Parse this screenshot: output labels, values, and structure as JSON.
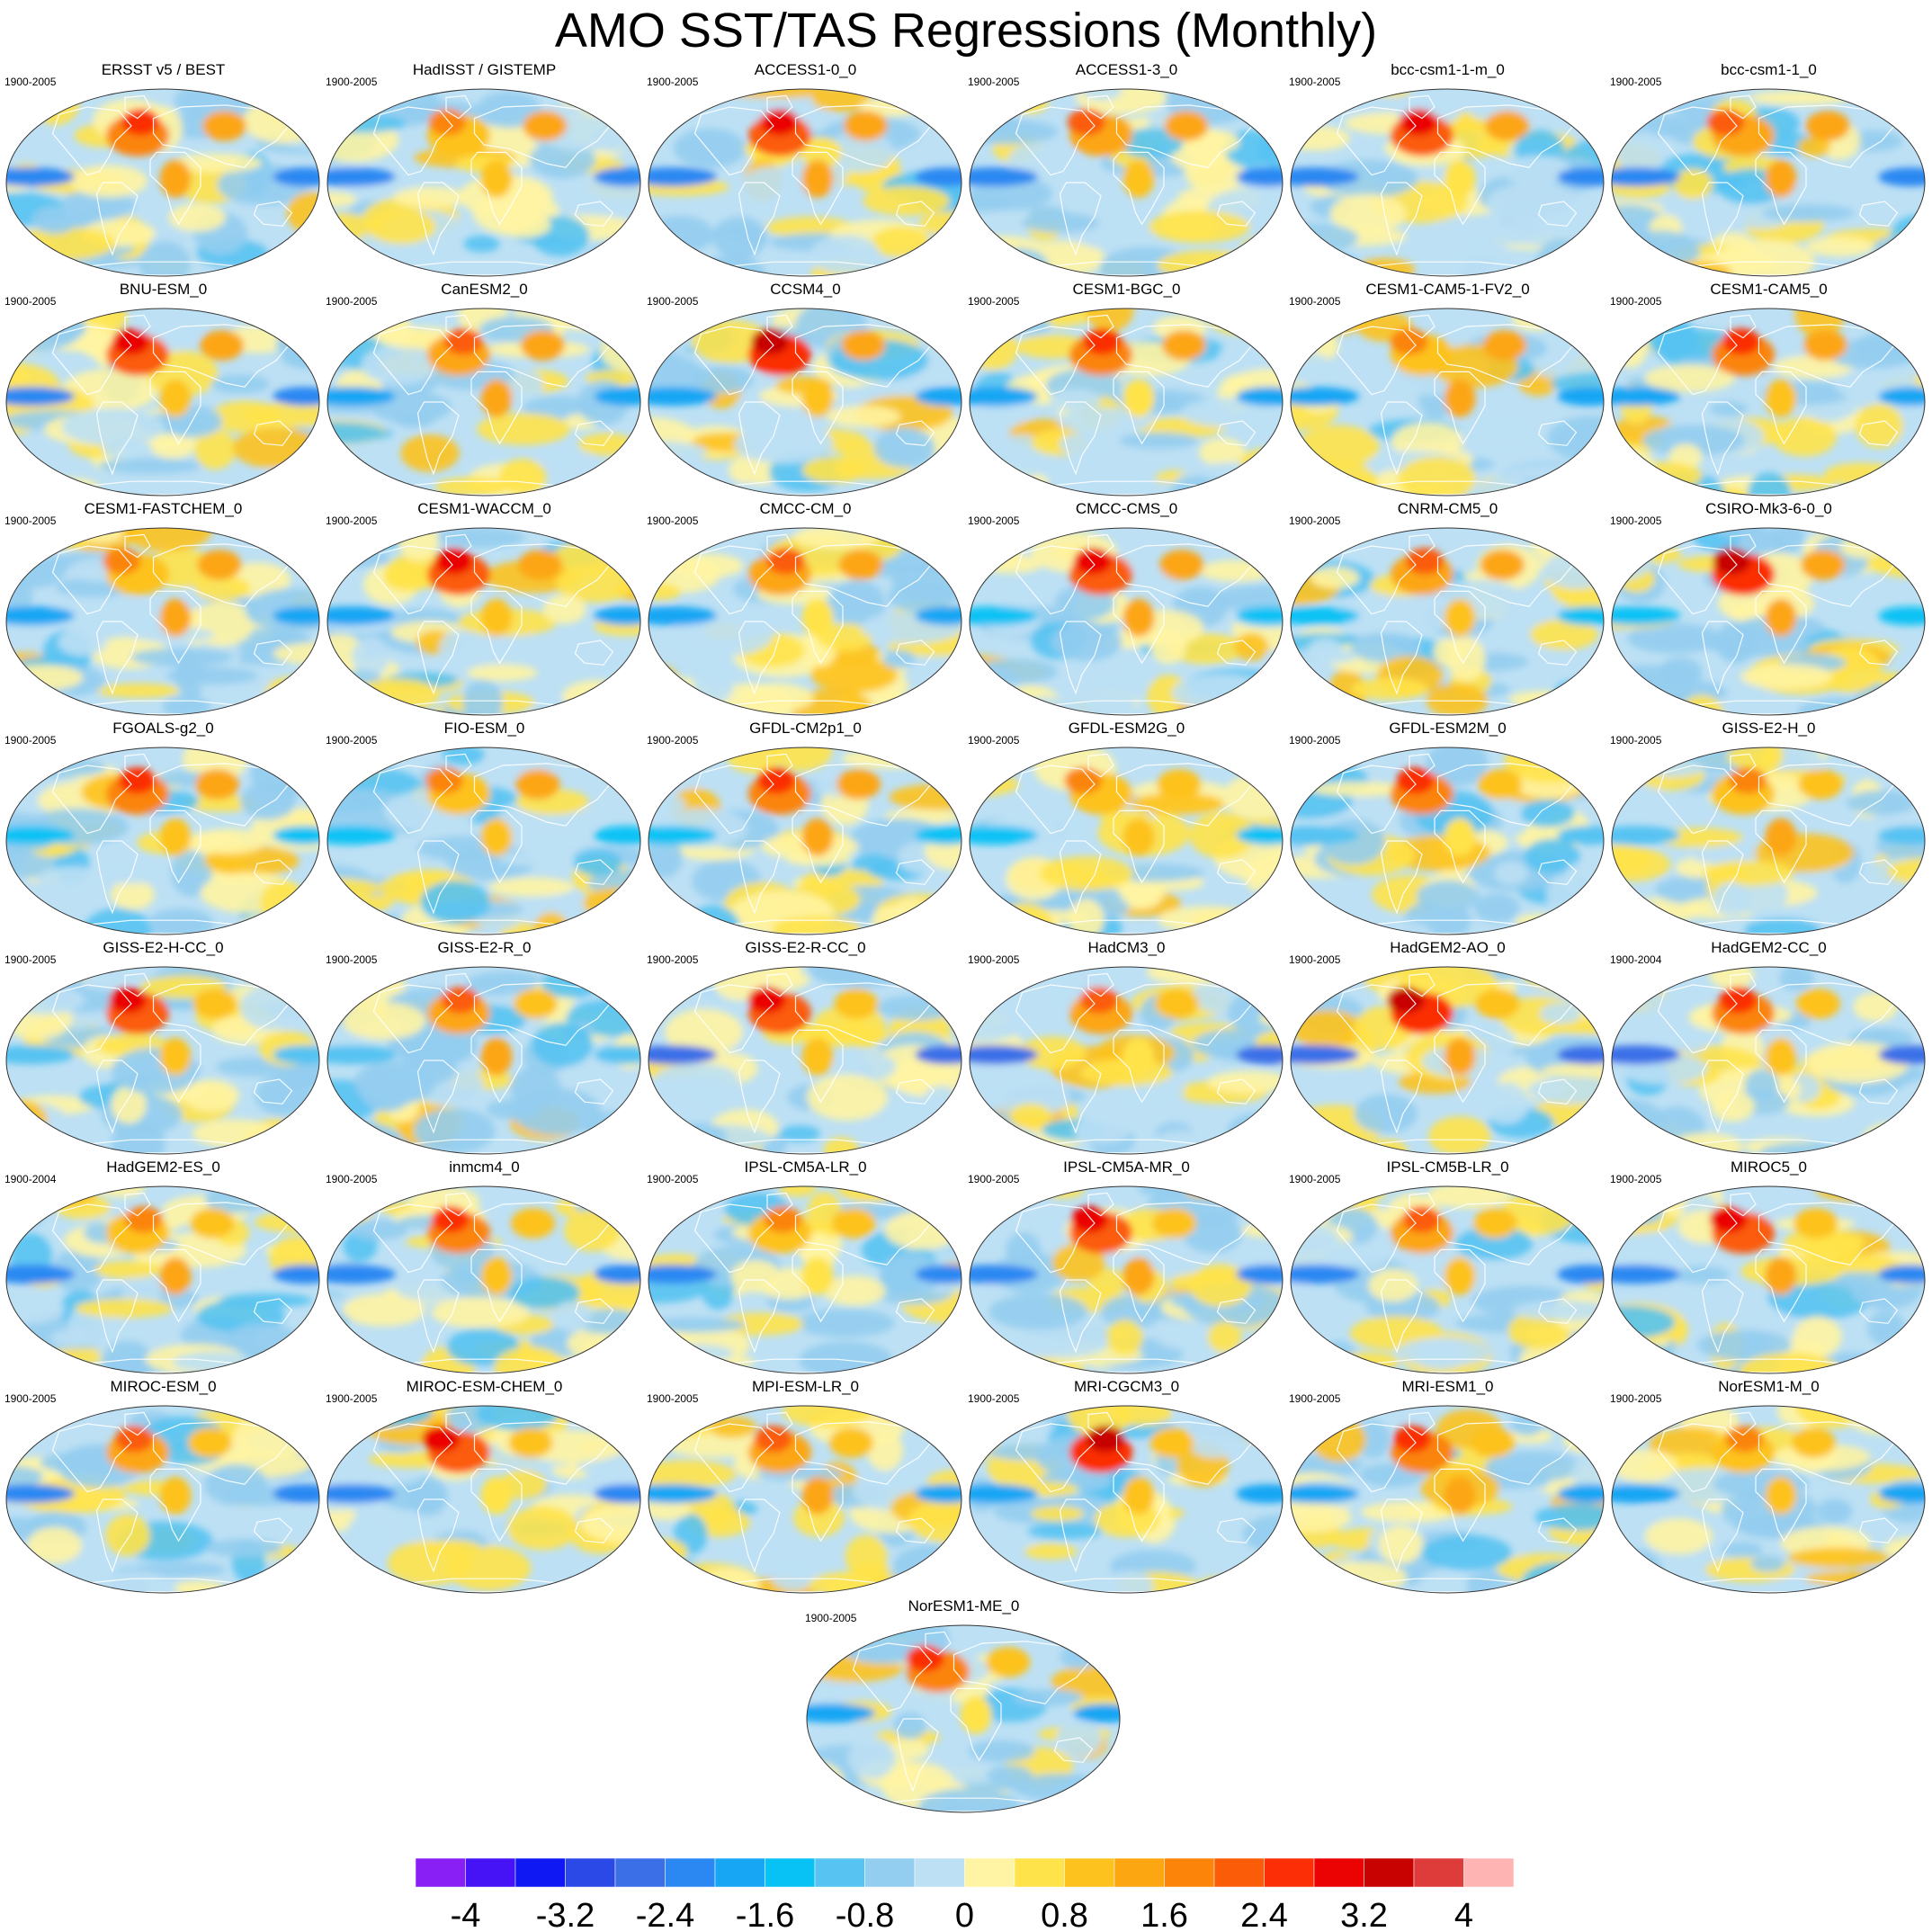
{
  "title": "AMO SST/TAS Regressions (Monthly)",
  "colors": {
    "scale": [
      "#8a1ff5",
      "#4513f5",
      "#0f18f2",
      "#2b49e6",
      "#3a6fe8",
      "#2b88f2",
      "#17a6f4",
      "#08c2f5",
      "#56c3f2",
      "#93cdef",
      "#bde0f4",
      "#fff4a3",
      "#ffe34a",
      "#fdc21d",
      "#fca612",
      "#fb8409",
      "#fb5c07",
      "#fb2e05",
      "#eb0202",
      "#c70201",
      "#de3b3b",
      "#ffb4b4"
    ]
  },
  "colorbar": {
    "labels": [
      "-4",
      "-3.2",
      "-2.4",
      "-1.6",
      "-0.8",
      "0",
      "0.8",
      "1.6",
      "2.4",
      "3.2",
      "4"
    ]
  },
  "panels": [
    {
      "name": "ERSST v5 / BEST",
      "period": "1900-2005"
    },
    {
      "name": "HadISST / GISTEMP",
      "period": "1900-2005"
    },
    {
      "name": "ACCESS1-0_0",
      "period": "1900-2005"
    },
    {
      "name": "ACCESS1-3_0",
      "period": "1900-2005"
    },
    {
      "name": "bcc-csm1-1-m_0",
      "period": "1900-2005"
    },
    {
      "name": "bcc-csm1-1_0",
      "period": "1900-2005"
    },
    {
      "name": "BNU-ESM_0",
      "period": "1900-2005"
    },
    {
      "name": "CanESM2_0",
      "period": "1900-2005"
    },
    {
      "name": "CCSM4_0",
      "period": "1900-2005"
    },
    {
      "name": "CESM1-BGC_0",
      "period": "1900-2005"
    },
    {
      "name": "CESM1-CAM5-1-FV2_0",
      "period": "1900-2005"
    },
    {
      "name": "CESM1-CAM5_0",
      "period": "1900-2005"
    },
    {
      "name": "CESM1-FASTCHEM_0",
      "period": "1900-2005"
    },
    {
      "name": "CESM1-WACCM_0",
      "period": "1900-2005"
    },
    {
      "name": "CMCC-CM_0",
      "period": "1900-2005"
    },
    {
      "name": "CMCC-CMS_0",
      "period": "1900-2005"
    },
    {
      "name": "CNRM-CM5_0",
      "period": "1900-2005"
    },
    {
      "name": "CSIRO-Mk3-6-0_0",
      "period": "1900-2005"
    },
    {
      "name": "FGOALS-g2_0",
      "period": "1900-2005"
    },
    {
      "name": "FIO-ESM_0",
      "period": "1900-2005"
    },
    {
      "name": "GFDL-CM2p1_0",
      "period": "1900-2005"
    },
    {
      "name": "GFDL-ESM2G_0",
      "period": "1900-2005"
    },
    {
      "name": "GFDL-ESM2M_0",
      "period": "1900-2005"
    },
    {
      "name": "GISS-E2-H_0",
      "period": "1900-2005"
    },
    {
      "name": "GISS-E2-H-CC_0",
      "period": "1900-2005"
    },
    {
      "name": "GISS-E2-R_0",
      "period": "1900-2005"
    },
    {
      "name": "GISS-E2-R-CC_0",
      "period": "1900-2005"
    },
    {
      "name": "HadCM3_0",
      "period": "1900-2005"
    },
    {
      "name": "HadGEM2-AO_0",
      "period": "1900-2005"
    },
    {
      "name": "HadGEM2-CC_0",
      "period": "1900-2004"
    },
    {
      "name": "HadGEM2-ES_0",
      "period": "1900-2004"
    },
    {
      "name": "inmcm4_0",
      "period": "1900-2005"
    },
    {
      "name": "IPSL-CM5A-LR_0",
      "period": "1900-2005"
    },
    {
      "name": "IPSL-CM5A-MR_0",
      "period": "1900-2005"
    },
    {
      "name": "IPSL-CM5B-LR_0",
      "period": "1900-2005"
    },
    {
      "name": "MIROC5_0",
      "period": "1900-2005"
    },
    {
      "name": "MIROC-ESM_0",
      "period": "1900-2005"
    },
    {
      "name": "MIROC-ESM-CHEM_0",
      "period": "1900-2005"
    },
    {
      "name": "MPI-ESM-LR_0",
      "period": "1900-2005"
    },
    {
      "name": "MRI-CGCM3_0",
      "period": "1900-2005"
    },
    {
      "name": "MRI-ESM1_0",
      "period": "1900-2005"
    },
    {
      "name": "NorESM1-M_0",
      "period": "1900-2005"
    },
    {
      "name": "NorESM1-ME_0",
      "period": "1900-2005"
    }
  ]
}
